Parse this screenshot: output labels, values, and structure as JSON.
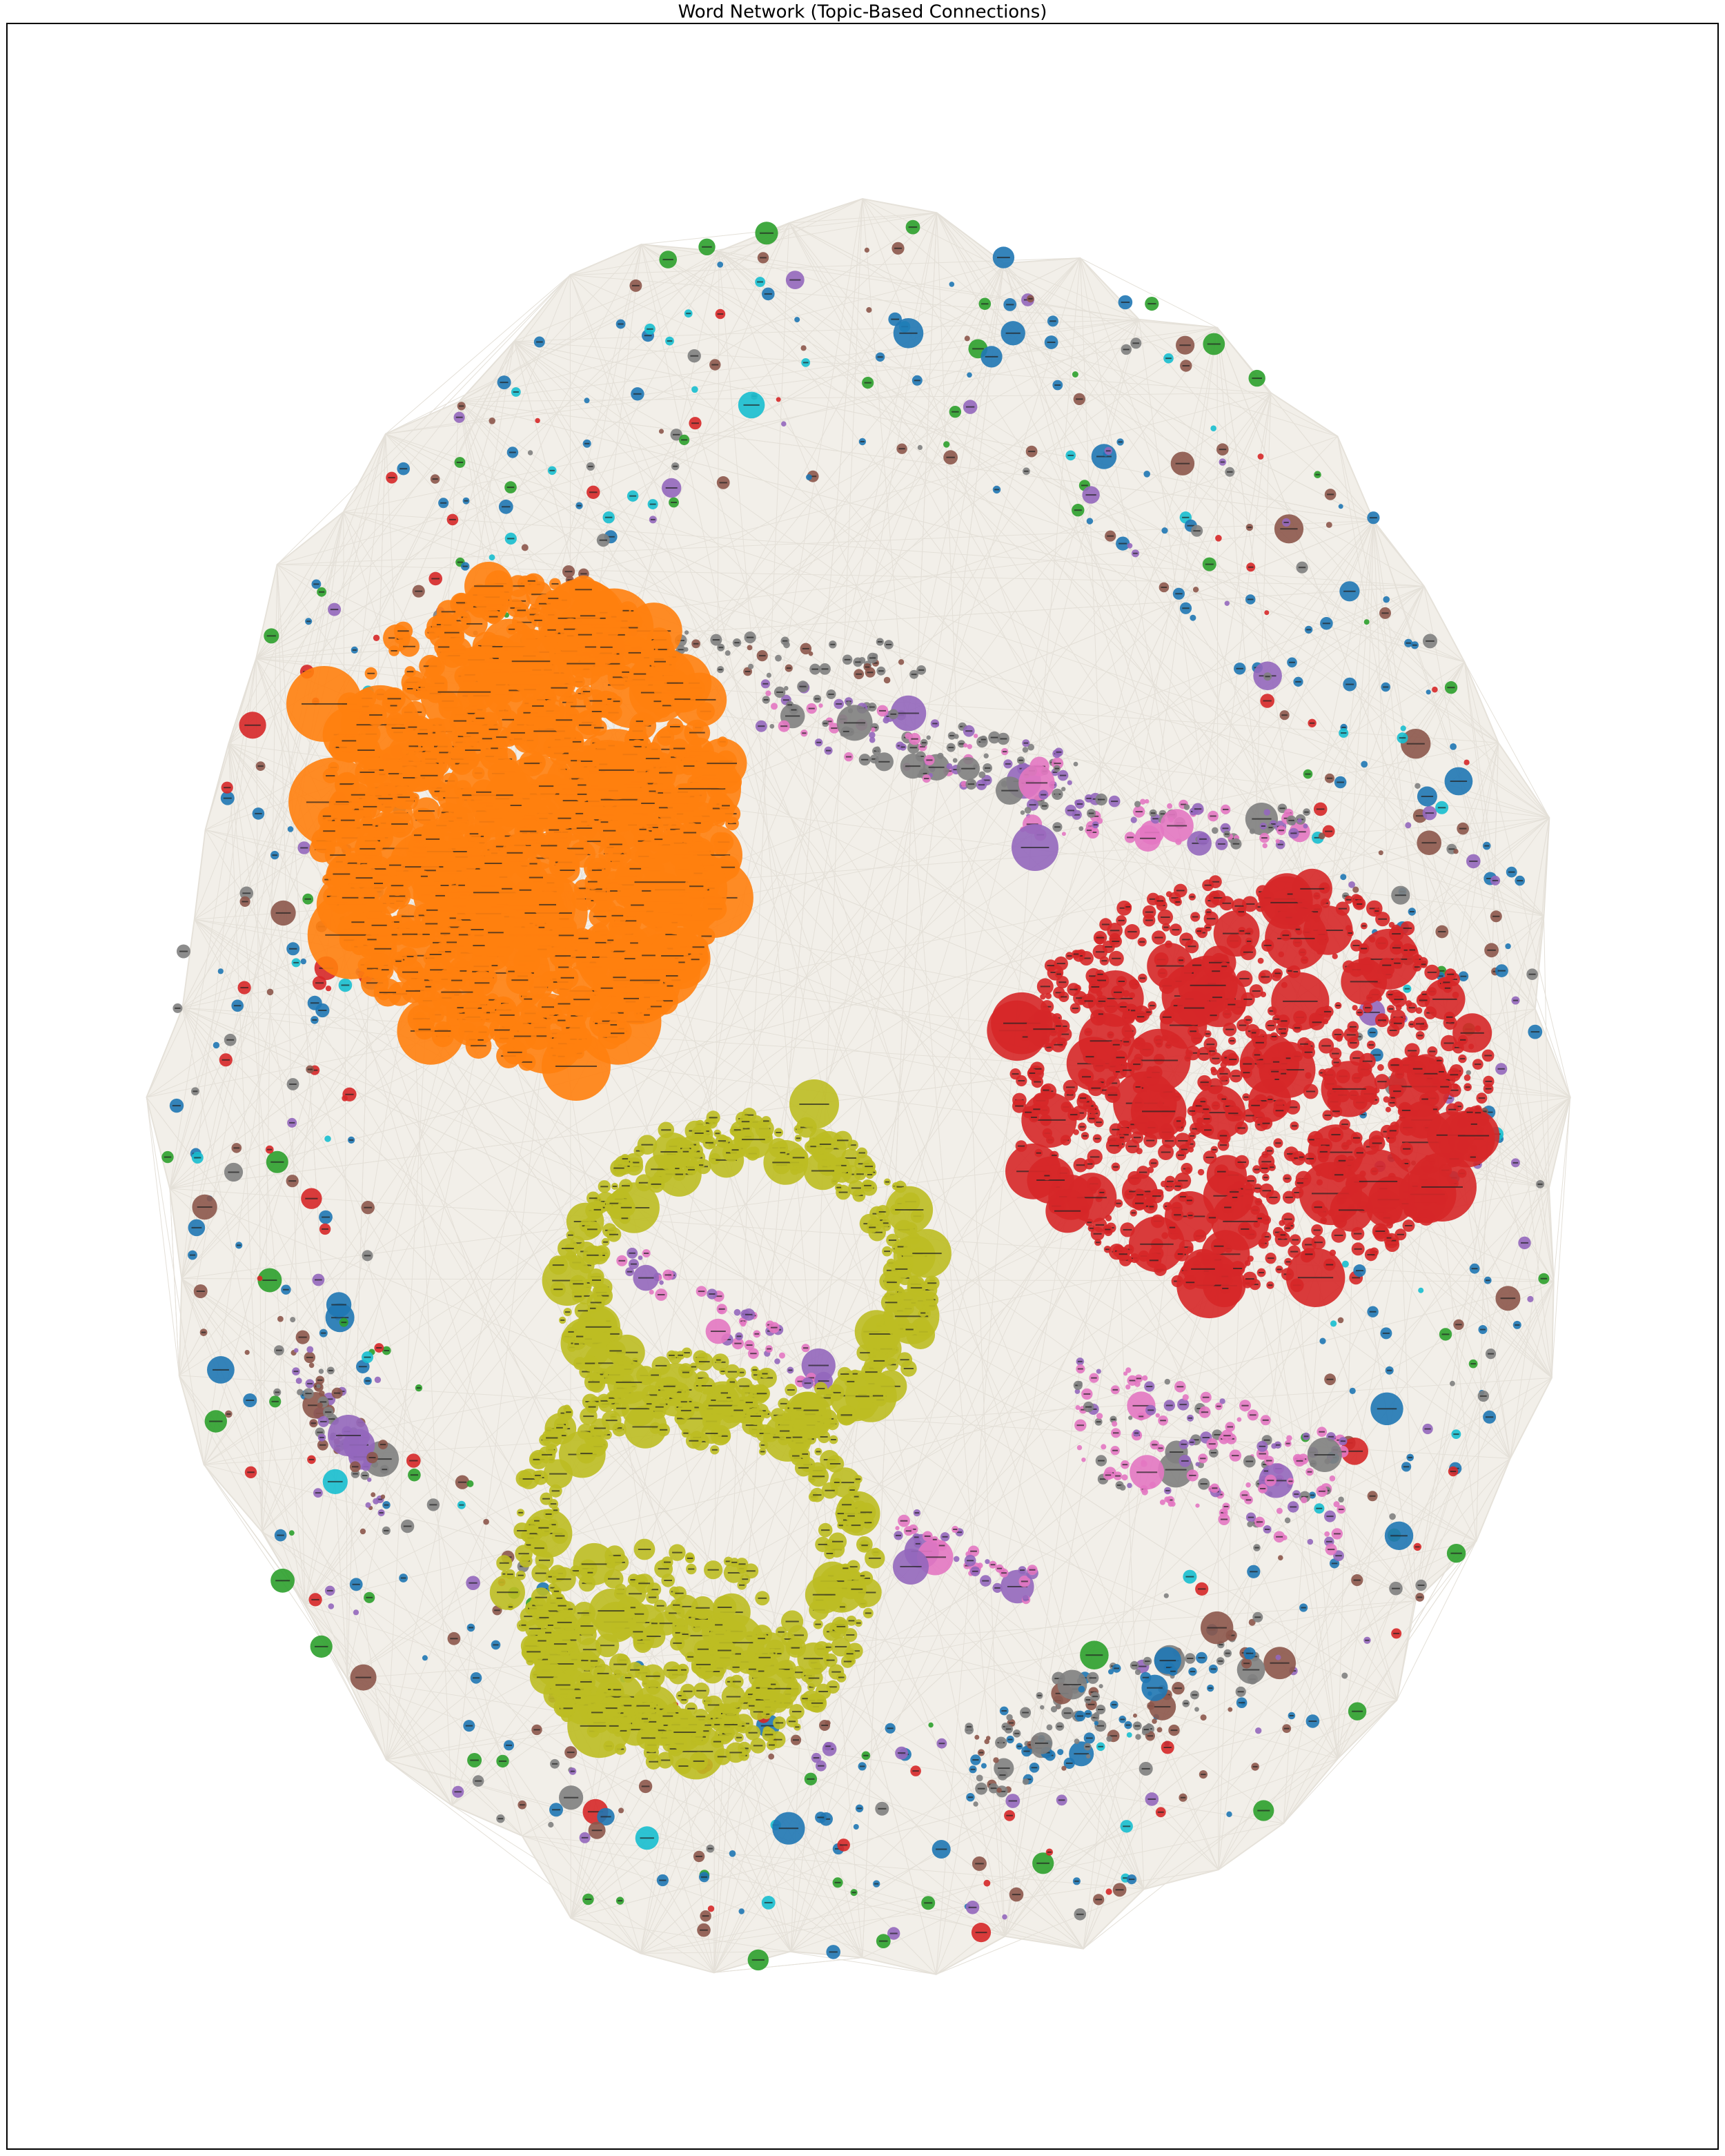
{
  "title": "Word Network (Topic-Based Connections)"
}
